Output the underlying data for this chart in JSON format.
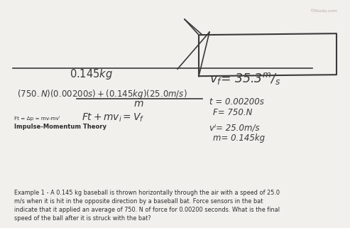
{
  "bg_color": "#f2f0ed",
  "title_text": "Example 1 - A 0.145 kg baseball is thrown horizontally through the air with a speed of 25.0\nm/s when it is hit in the opposite direction by a baseball bat. Force sensors in the bat\nindicate that it applied an average of 750. N of force for 0.00200 seconds. What is the final\nspeed of the ball after it is struck with the bat?",
  "impulse_label": "Impulse-Momentum Theory",
  "formula_basic": "Ft = Δp = mv-mvᴵ",
  "given_m": "m= 0.145kg",
  "given_vi": "vᴵ= 25.0m/s",
  "given_F": "F= 750.N",
  "given_t": "t = 0.00200s",
  "watermark": "©Study.com",
  "text_color": "#2c2c2c",
  "handwriting_color": "#3a3a3a"
}
